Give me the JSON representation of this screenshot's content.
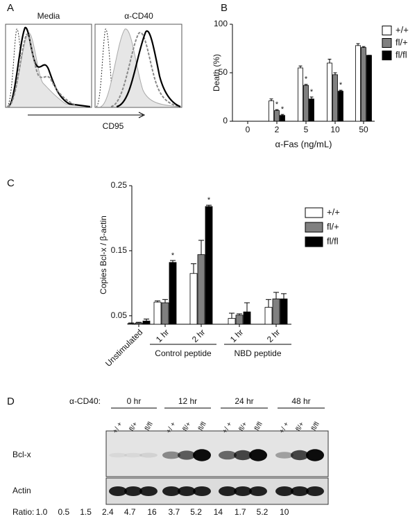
{
  "panel_a": {
    "label": "A",
    "left_title": "Media",
    "right_title": "α-CD40",
    "x_label": "CD95"
  },
  "chart_data": [
    {
      "type": "bar",
      "panel_label": "B",
      "x_label": "α-Fas (ng/mL)",
      "y_label": "Death (%)",
      "categories": [
        "0",
        "2",
        "5",
        "10",
        "50"
      ],
      "ylim": [
        0,
        100
      ],
      "yticks": [
        0,
        50,
        100
      ],
      "series": [
        {
          "name": "+/+",
          "color": "#ffffff",
          "values": [
            0,
            21,
            55,
            60,
            78
          ],
          "errors": [
            0,
            2,
            2,
            4,
            2
          ],
          "significance": [
            null,
            null,
            null,
            null,
            null
          ]
        },
        {
          "name": "fl/+",
          "color": "#808080",
          "values": [
            0,
            11,
            37,
            48,
            76
          ],
          "errors": [
            0,
            1,
            1,
            2,
            1
          ],
          "significance": [
            null,
            "*",
            "*",
            null,
            null
          ]
        },
        {
          "name": "fl/fl",
          "color": "#000000",
          "values": [
            0,
            6,
            23,
            31,
            68
          ],
          "errors": [
            0,
            1,
            2,
            1,
            0
          ],
          "significance": [
            null,
            "*",
            "*",
            "*",
            null
          ]
        }
      ]
    },
    {
      "type": "bar",
      "panel_label": "C",
      "y_label": "Copies Bcl-x / β-actin",
      "categories": [
        "Unstimulated",
        "1 hr",
        "2 hr",
        "1 hr",
        "2 hr"
      ],
      "groups": [
        "Control peptide",
        "NBD peptide"
      ],
      "ylim": [
        0.037,
        0.25
      ],
      "yticks": [
        0.05,
        0.15,
        0.25
      ],
      "series": [
        {
          "name": "+/+",
          "color": "#ffffff",
          "values": [
            0.038,
            0.071,
            0.115,
            0.046,
            0.063
          ],
          "errors": [
            0.001,
            0.002,
            0.015,
            0.008,
            0.012
          ],
          "significance": [
            null,
            null,
            null,
            null,
            null
          ]
        },
        {
          "name": "fl/+",
          "color": "#808080",
          "values": [
            0.039,
            0.07,
            0.144,
            0.051,
            0.076
          ],
          "errors": [
            0.001,
            0.005,
            0.022,
            0.002,
            0.01
          ],
          "significance": [
            null,
            null,
            null,
            null,
            null
          ]
        },
        {
          "name": "fl/fl",
          "color": "#000000",
          "values": [
            0.042,
            0.132,
            0.218,
            0.056,
            0.076
          ],
          "errors": [
            0.003,
            0.003,
            0.002,
            0.014,
            0.008
          ],
          "significance": [
            null,
            "*",
            "*",
            null,
            null
          ]
        }
      ]
    }
  ],
  "panel_d": {
    "label": "D",
    "treatment": "α-CD40:",
    "times": [
      "0 hr",
      "12 hr",
      "24 hr",
      "48 hr"
    ],
    "lanes": [
      "+/ +",
      "fl/+",
      "fl/fl",
      "+/ +",
      "fl/+",
      "fl/fl",
      "+/ +",
      "fl/+",
      "fl/fl",
      "+/ +",
      "fl/+",
      "fl/fl"
    ],
    "rows": [
      "Bcl-x",
      "Actin"
    ],
    "ratio_label": "Ratio:",
    "ratios": [
      "1.0",
      "0.5",
      "1.5",
      "2.4",
      "4.7",
      "16",
      "3.7",
      "5.2",
      "14",
      "1.7",
      "5.2",
      "10"
    ]
  }
}
